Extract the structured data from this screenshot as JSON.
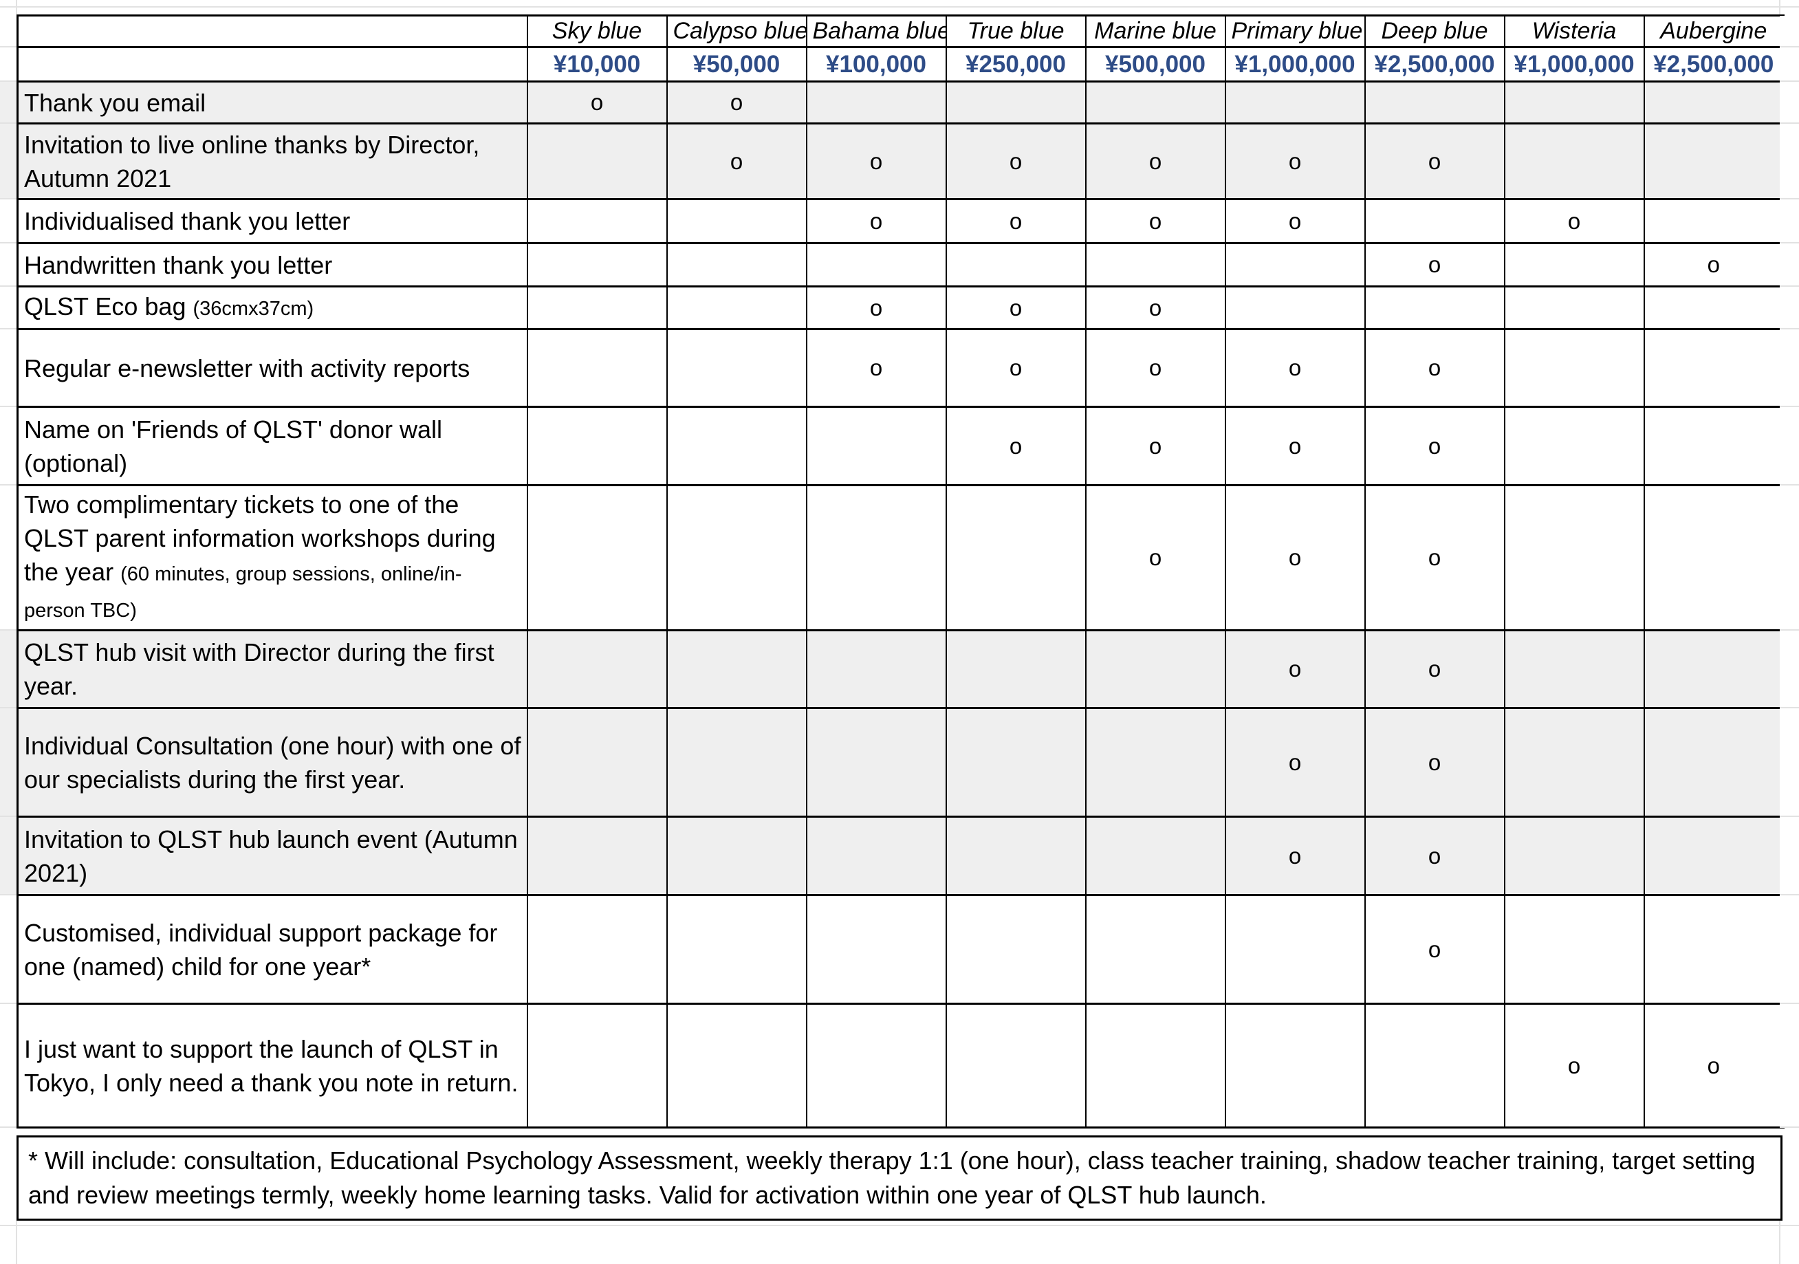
{
  "table": {
    "corner": "",
    "tiers": [
      {
        "name": "Sky blue",
        "amount": "¥10,000"
      },
      {
        "name": "Calypso blue",
        "amount": "¥50,000"
      },
      {
        "name": "Bahama blue",
        "amount": "¥100,000"
      },
      {
        "name": "True blue",
        "amount": "¥250,000"
      },
      {
        "name": "Marine blue",
        "amount": "¥500,000"
      },
      {
        "name": "Primary blue",
        "amount": "¥1,000,000"
      },
      {
        "name": "Deep blue",
        "amount": "¥2,500,000"
      },
      {
        "name": "Wisteria",
        "amount": "¥1,000,000"
      },
      {
        "name": "Aubergine",
        "amount": "¥2,500,000"
      }
    ],
    "mark_symbol": "o",
    "rows": [
      {
        "label": "Thank you email",
        "small": "",
        "shaded": true,
        "marks": [
          1,
          1,
          0,
          0,
          0,
          0,
          0,
          0,
          0
        ]
      },
      {
        "label": "Invitation to live online thanks by Director, Autumn 2021",
        "small": "",
        "shaded": true,
        "marks": [
          0,
          1,
          1,
          1,
          1,
          1,
          1,
          0,
          0
        ]
      },
      {
        "label": "Individualised thank you letter",
        "small": "",
        "shaded": false,
        "marks": [
          0,
          0,
          1,
          1,
          1,
          1,
          0,
          1,
          0
        ]
      },
      {
        "label": "Handwritten thank you letter",
        "small": "",
        "shaded": false,
        "marks": [
          0,
          0,
          0,
          0,
          0,
          0,
          1,
          0,
          1
        ]
      },
      {
        "label": "QLST Eco bag",
        "small": "(36cmx37cm)",
        "shaded": false,
        "marks": [
          0,
          0,
          1,
          1,
          1,
          0,
          0,
          0,
          0
        ]
      },
      {
        "label": "Regular e-newsletter with activity reports",
        "small": "",
        "shaded": false,
        "marks": [
          0,
          0,
          1,
          1,
          1,
          1,
          1,
          0,
          0
        ]
      },
      {
        "label": "Name on 'Friends of QLST' donor wall (optional)",
        "small": "",
        "shaded": false,
        "marks": [
          0,
          0,
          0,
          1,
          1,
          1,
          1,
          0,
          0
        ]
      },
      {
        "label": "Two complimentary tickets to one of the QLST parent information workshops during the year",
        "small": "(60 minutes, group sessions, online/in-person TBC)",
        "shaded": false,
        "marks": [
          0,
          0,
          0,
          0,
          1,
          1,
          1,
          0,
          0
        ]
      },
      {
        "label": "QLST hub visit with Director during the first year.",
        "small": "",
        "shaded": true,
        "marks": [
          0,
          0,
          0,
          0,
          0,
          1,
          1,
          0,
          0
        ]
      },
      {
        "label": "Individual Consultation (one hour) with one of our specialists during the first year.",
        "small": "",
        "shaded": true,
        "marks": [
          0,
          0,
          0,
          0,
          0,
          1,
          1,
          0,
          0
        ]
      },
      {
        "label": "Invitation to QLST hub launch event (Autumn 2021)",
        "small": "",
        "shaded": true,
        "marks": [
          0,
          0,
          0,
          0,
          0,
          1,
          1,
          0,
          0
        ]
      },
      {
        "label": "Customised, individual support package for one (named) child for one year*",
        "small": "",
        "shaded": false,
        "marks": [
          0,
          0,
          0,
          0,
          0,
          0,
          1,
          0,
          0
        ]
      },
      {
        "label": "I just want to support the launch of QLST in Tokyo, I only need a thank you note in return.",
        "small": "",
        "shaded": false,
        "marks": [
          0,
          0,
          0,
          0,
          0,
          0,
          0,
          1,
          1
        ]
      }
    ],
    "footnote": "* Will include: consultation, Educational Psychology Assessment, weekly therapy 1:1 (one hour), class teacher training, shadow teacher training, target setting and review meetings termly, weekly home learning tasks. Valid for activation within one year of QLST hub launch.",
    "colors": {
      "amount_text": "#2e4c87",
      "row_shade": "#efefef",
      "gridline": "#e2e2e2",
      "table_border": "#000000"
    }
  }
}
